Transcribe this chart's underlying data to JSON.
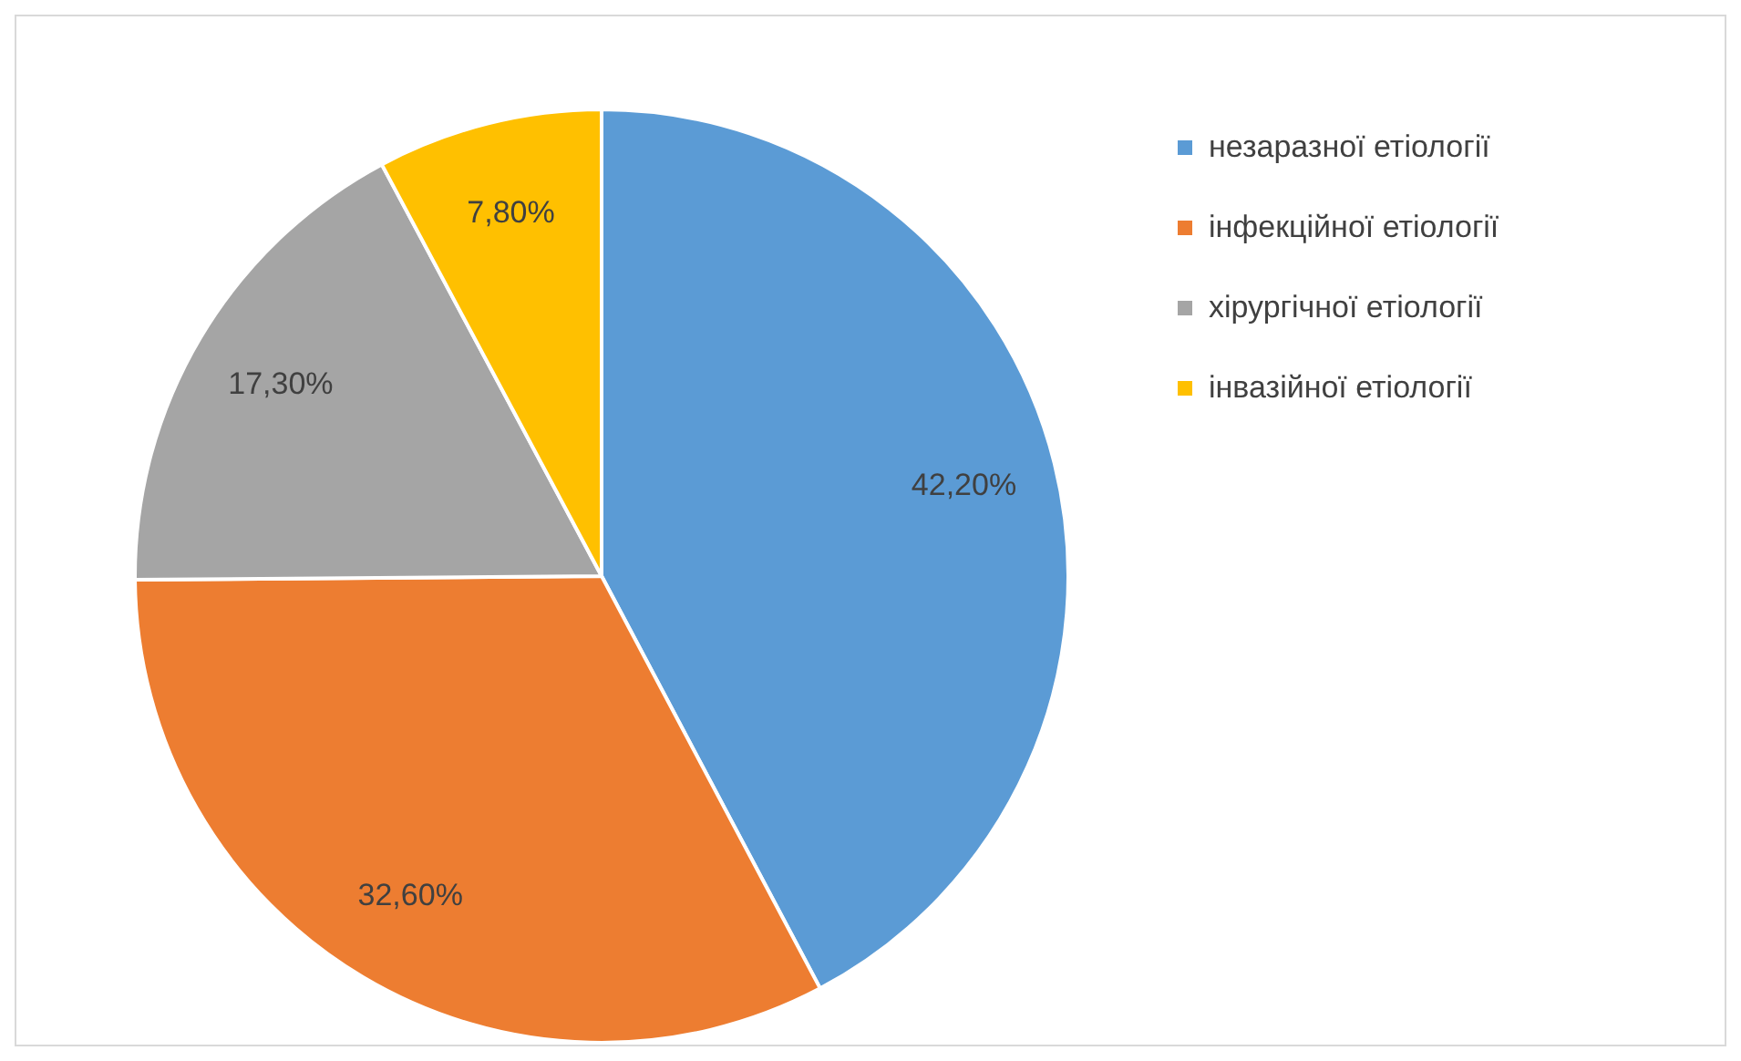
{
  "chart_data": {
    "type": "pie",
    "categories": [
      "незаразної етіології",
      "інфекційної етіології",
      "хірургічної етіології",
      "інвазійної етіології"
    ],
    "values": [
      42.2,
      32.6,
      17.3,
      7.8
    ],
    "colors": [
      "#5b9bd5",
      "#ed7d31",
      "#a5a5a5",
      "#ffc000"
    ],
    "value_labels": [
      "42,20%",
      "32,60%",
      "17,30%",
      "7,80%"
    ],
    "legend": "top right"
  }
}
